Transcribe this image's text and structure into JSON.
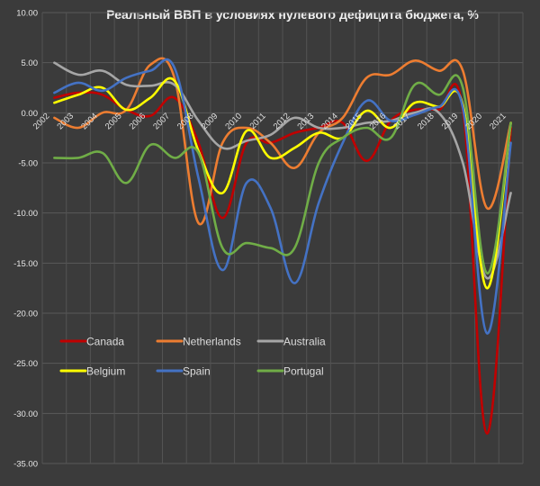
{
  "chart_data": {
    "type": "line",
    "title": "Реальный ВВП в условиях нулевого дефицита бюджета, %",
    "x": [
      "2002",
      "2003",
      "2004",
      "2005",
      "2006",
      "2007",
      "2008",
      "2009",
      "2010",
      "2011",
      "2012",
      "2013",
      "2014",
      "2015",
      "2016",
      "2017",
      "2018",
      "2019",
      "2020",
      "2021"
    ],
    "ylim": [
      -35,
      10
    ],
    "yticks": [
      "10.00",
      "5.00",
      "0.00",
      "-5.00",
      "-10.00",
      "-15.00",
      "-20.00",
      "-25.00",
      "-30.00",
      "-35.00"
    ],
    "grid": true,
    "legend_position": "bottom-left inside plot",
    "series": [
      {
        "name": "Canada",
        "color": "#c00000",
        "values": [
          1.5,
          2.0,
          1.8,
          0.3,
          -0.3,
          1.5,
          -3.0,
          -10.5,
          -3.0,
          -3.0,
          -2.0,
          -1.5,
          -1.0,
          -4.8,
          -0.8,
          0.3,
          0.3,
          0.3,
          -32.0,
          -1.5
        ]
      },
      {
        "name": "Netherlands",
        "color": "#ed7d31",
        "values": [
          -0.5,
          -1.5,
          0.0,
          0.3,
          4.8,
          3.5,
          -11.0,
          -3.0,
          -1.5,
          -3.0,
          -5.5,
          -2.0,
          -0.5,
          3.5,
          3.8,
          5.2,
          4.2,
          4.2,
          -9.5,
          -1.0
        ]
      },
      {
        "name": "Australia",
        "color": "#a6a6a6",
        "values": [
          5.0,
          3.8,
          4.2,
          2.8,
          2.7,
          2.8,
          -0.8,
          -3.5,
          -2.8,
          -2.2,
          -0.5,
          -1.5,
          -1.5,
          -1.0,
          -0.8,
          0.0,
          0.0,
          -5.0,
          -16.5,
          -8.0
        ]
      },
      {
        "name": "Belgium",
        "color": "#ffff00",
        "values": [
          1.0,
          1.8,
          2.5,
          0.3,
          1.5,
          3.2,
          -3.8,
          -8.0,
          -1.8,
          -4.5,
          -3.5,
          -2.0,
          -2.5,
          0.2,
          -1.5,
          1.0,
          0.6,
          0.8,
          -17.5,
          -1.0
        ]
      },
      {
        "name": "Spain",
        "color": "#4472c4",
        "values": [
          2.0,
          3.0,
          2.2,
          3.5,
          4.2,
          4.5,
          -6.5,
          -15.7,
          -7.0,
          -9.5,
          -17.0,
          -9.0,
          -3.0,
          1.2,
          -0.8,
          -0.2,
          0.6,
          0.5,
          -22.0,
          -3.0
        ]
      },
      {
        "name": "Portugal",
        "color": "#70ad47",
        "values": [
          -4.5,
          -4.5,
          -4.0,
          -7.0,
          -3.2,
          -4.5,
          -4.0,
          -13.5,
          -13.0,
          -13.5,
          -13.5,
          -5.0,
          -2.5,
          -1.5,
          -2.5,
          2.8,
          1.8,
          2.5,
          -16.0,
          -1.0
        ]
      }
    ]
  }
}
